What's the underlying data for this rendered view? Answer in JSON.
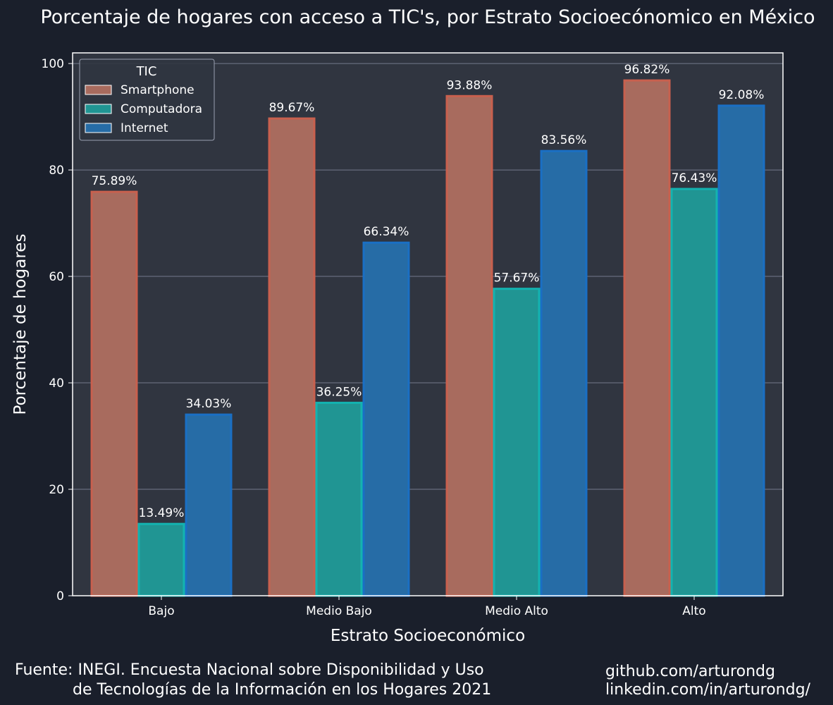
{
  "chart_data": {
    "type": "bar",
    "title": "Porcentaje de hogares con acceso a TIC's, por Estrato Socioecónomico en México",
    "xlabel": "Estrato Socioeconómico",
    "ylabel": "Porcentaje de hogares",
    "categories": [
      "Bajo",
      "Medio Bajo",
      "Medio Alto",
      "Alto"
    ],
    "ylim": [
      0,
      102
    ],
    "yticks": [
      0,
      20,
      40,
      60,
      80,
      100
    ],
    "grid": true,
    "legend": {
      "title": "TIC",
      "placement": "top-left"
    },
    "series": [
      {
        "name": "Smartphone",
        "values": [
          75.89,
          89.67,
          93.88,
          96.82
        ],
        "labels": [
          "75.89%",
          "89.67%",
          "93.88%",
          "96.82%"
        ],
        "fill": "#a86b5e",
        "stroke": "#c8604e"
      },
      {
        "name": "Computadora",
        "values": [
          13.49,
          36.25,
          57.67,
          76.43
        ],
        "labels": [
          "13.49%",
          "36.25%",
          "57.67%",
          "76.43%"
        ],
        "fill": "#209593",
        "stroke": "#13b3b0"
      },
      {
        "name": "Internet",
        "values": [
          34.03,
          66.34,
          83.56,
          92.08
        ],
        "labels": [
          "34.03%",
          "66.34%",
          "83.56%",
          "92.08%"
        ],
        "fill": "#266ca6",
        "stroke": "#1a6fc4"
      }
    ]
  },
  "colors": {
    "background": "#1a1f2b",
    "plot_background": "#303540",
    "grid": "#8a90a6",
    "text": "#ffffff"
  },
  "footer": {
    "source_line1": "Fuente: INEGI. Encuesta Nacional sobre Disponibilidad y Uso",
    "source_line2": "de Tecnologías de la Información en los Hogares 2021",
    "credit_line1": "github.com/arturondg",
    "credit_line2": "linkedin.com/in/arturondg/"
  }
}
